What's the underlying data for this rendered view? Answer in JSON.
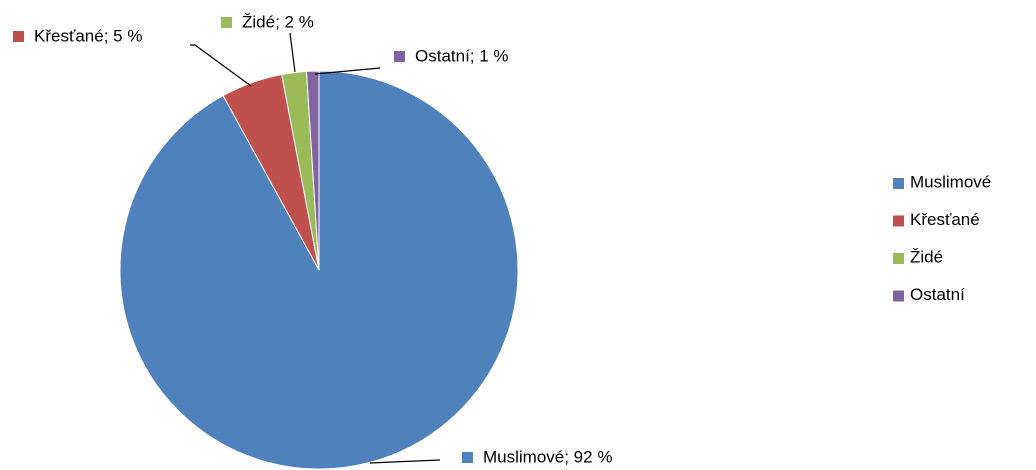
{
  "chart_data": {
    "type": "pie",
    "categories": [
      "Muslimové",
      "Křesťané",
      "Židé",
      "Ostatní"
    ],
    "values": [
      92,
      5,
      2,
      1
    ],
    "value_labels": [
      "Muslimové; 92 %",
      "Křesťané; 5 %",
      "Židé; 2 %",
      "Ostatní; 1 %"
    ],
    "colors": [
      "#4f81bd",
      "#c0504d",
      "#9bbb59",
      "#8064a2"
    ],
    "legend": "right"
  }
}
